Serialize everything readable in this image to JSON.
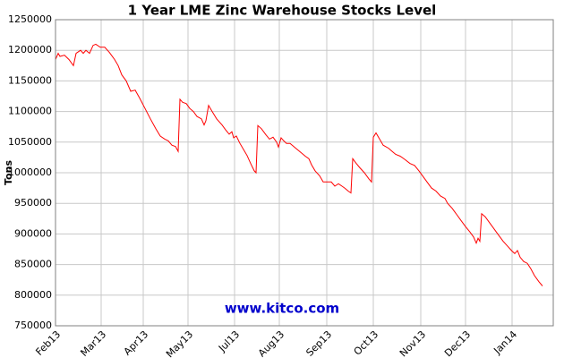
{
  "chart_data": {
    "type": "line",
    "title": "1 Year LME Zinc Warehouse Stocks Level",
    "y_label": "Tons",
    "watermark": "www.kitco.com",
    "x": [
      0,
      3,
      5,
      10,
      15,
      20,
      23,
      28,
      31,
      34,
      38,
      42,
      45,
      50,
      55,
      60,
      66,
      70,
      74,
      79,
      84,
      89,
      94,
      100,
      106,
      112,
      117,
      122,
      126,
      130,
      134,
      137,
      139,
      142,
      146,
      150,
      154,
      158,
      163,
      166,
      168,
      171,
      175,
      180,
      186,
      190,
      194,
      197,
      199,
      202,
      206,
      210,
      214,
      218,
      222,
      224,
      226,
      230,
      235,
      239,
      243,
      247,
      249,
      252,
      255,
      258,
      262,
      266,
      270,
      275,
      279,
      283,
      286,
      290,
      295,
      299,
      303,
      308,
      312,
      316,
      320,
      323,
      327,
      330,
      332,
      336,
      340,
      345,
      350,
      353,
      355,
      358,
      362,
      366,
      372,
      376,
      380,
      385,
      390,
      396,
      401,
      406,
      410,
      415,
      420,
      425,
      430,
      435,
      438,
      443,
      448,
      453,
      458,
      463,
      467,
      470,
      472,
      474,
      476,
      480,
      485,
      490,
      495,
      500,
      505,
      510,
      513,
      516,
      519,
      523,
      527,
      531,
      535,
      540,
      544
    ],
    "series": [
      {
        "name": "LME Zinc Warehouse Stocks",
        "color": "#ff0000",
        "values": [
          1185000,
          1195000,
          1190000,
          1192000,
          1185000,
          1175000,
          1195000,
          1200000,
          1195000,
          1200000,
          1195000,
          1208000,
          1210000,
          1205000,
          1205000,
          1197000,
          1185000,
          1175000,
          1160000,
          1150000,
          1133000,
          1135000,
          1122000,
          1105000,
          1088000,
          1072000,
          1060000,
          1055000,
          1052000,
          1045000,
          1043000,
          1035000,
          1120000,
          1115000,
          1113000,
          1105000,
          1100000,
          1092000,
          1088000,
          1078000,
          1085000,
          1110000,
          1100000,
          1088000,
          1078000,
          1070000,
          1063000,
          1067000,
          1057000,
          1060000,
          1048000,
          1038000,
          1028000,
          1015000,
          1003000,
          1000000,
          1077000,
          1072000,
          1062000,
          1055000,
          1058000,
          1050000,
          1042000,
          1057000,
          1052000,
          1048000,
          1048000,
          1043000,
          1038000,
          1032000,
          1027000,
          1023000,
          1013000,
          1003000,
          995000,
          985000,
          985000,
          985000,
          978000,
          982000,
          978000,
          975000,
          970000,
          967000,
          1023000,
          1015000,
          1008000,
          1000000,
          990000,
          985000,
          1058000,
          1065000,
          1055000,
          1045000,
          1040000,
          1035000,
          1030000,
          1027000,
          1022000,
          1015000,
          1012000,
          1003000,
          995000,
          985000,
          975000,
          970000,
          962000,
          958000,
          950000,
          942000,
          932000,
          922000,
          912000,
          903000,
          895000,
          885000,
          893000,
          888000,
          933000,
          928000,
          918000,
          908000,
          898000,
          888000,
          880000,
          872000,
          868000,
          873000,
          862000,
          855000,
          852000,
          843000,
          832000,
          822000,
          815000
        ]
      }
    ],
    "xlim": [
      0,
      556
    ],
    "xticks": [
      {
        "value": 0,
        "label": "Feb13"
      },
      {
        "value": 51,
        "label": "Mar13"
      },
      {
        "value": 98,
        "label": "Apr13"
      },
      {
        "value": 148,
        "label": "May13"
      },
      {
        "value": 200,
        "label": "Jul13"
      },
      {
        "value": 250,
        "label": "Aug13"
      },
      {
        "value": 303,
        "label": "Sep13"
      },
      {
        "value": 355,
        "label": "Oct13"
      },
      {
        "value": 408,
        "label": "Nov13"
      },
      {
        "value": 458,
        "label": "Dec13"
      },
      {
        "value": 510,
        "label": "Jan14"
      }
    ],
    "ylim": [
      750000,
      1250000
    ],
    "yticks": [
      750000,
      800000,
      850000,
      900000,
      950000,
      1000000,
      1050000,
      1100000,
      1150000,
      1200000,
      1250000
    ],
    "grid": true
  }
}
